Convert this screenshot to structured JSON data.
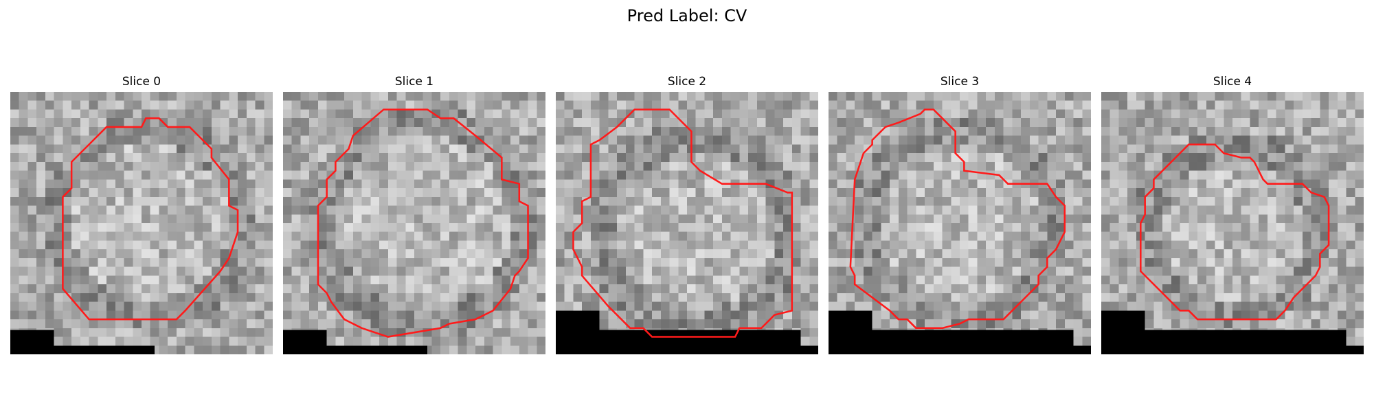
{
  "figure": {
    "title": "Pred Label: CV"
  },
  "colors": {
    "contour": "#ff1a1a",
    "mask": "#000000",
    "background": "#ffffff"
  },
  "slices": [
    {
      "title": "Slice 0"
    },
    {
      "title": "Slice 1"
    },
    {
      "title": "Slice 2"
    },
    {
      "title": "Slice 3"
    },
    {
      "title": "Slice 4"
    }
  ]
}
